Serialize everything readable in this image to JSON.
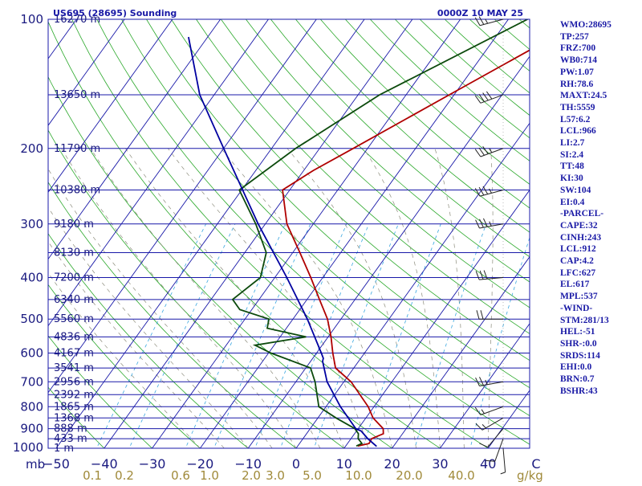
{
  "chart_data": {
    "type": "line",
    "title": "US695 (28695) Sounding",
    "datetime": "0000Z 10 MAY 25",
    "x_axis_unit": "mb",
    "temperature_ticks": [
      "−50",
      "−40",
      "−30",
      "−20",
      "−10",
      "0",
      "10",
      "20",
      "30",
      "40",
      "C"
    ],
    "mixing_ratio_label": "g/kg",
    "mixing_ratio_values": [
      "0.1",
      "0.2",
      "0.6",
      "1.0",
      "2.0",
      "3.0",
      "5.0",
      "10.0",
      "20.0",
      "40.0"
    ],
    "pressure_ticks": [
      {
        "p": 100,
        "label": "100"
      },
      {
        "p": 200,
        "label": "200"
      },
      {
        "p": 300,
        "label": "300"
      },
      {
        "p": 400,
        "label": "400"
      },
      {
        "p": 500,
        "label": "500"
      },
      {
        "p": 600,
        "label": "600"
      },
      {
        "p": 700,
        "label": "700"
      },
      {
        "p": 800,
        "label": "800"
      },
      {
        "p": 900,
        "label": "900"
      },
      {
        "p": 1000,
        "label": "1000"
      }
    ],
    "height_levels": [
      {
        "p": 100,
        "label": "16270 m"
      },
      {
        "p": 150,
        "label": "13650 m"
      },
      {
        "p": 200,
        "label": "11790 m"
      },
      {
        "p": 250,
        "label": "10380 m"
      },
      {
        "p": 300,
        "label": "9180 m"
      },
      {
        "p": 350,
        "label": "8130 m"
      },
      {
        "p": 400,
        "label": "7200 m"
      },
      {
        "p": 450,
        "label": "6340 m"
      },
      {
        "p": 500,
        "label": "5560 m"
      },
      {
        "p": 550,
        "label": "4836 m"
      },
      {
        "p": 600,
        "label": "4167 m"
      },
      {
        "p": 650,
        "label": "3541 m"
      },
      {
        "p": 700,
        "label": "2956 m"
      },
      {
        "p": 750,
        "label": "2392 m"
      },
      {
        "p": 800,
        "label": "1865 m"
      },
      {
        "p": 850,
        "label": "1368 m"
      },
      {
        "p": 900,
        "label": "888 m"
      },
      {
        "p": 950,
        "label": "433 m"
      },
      {
        "p": 1000,
        "label": "1 m"
      }
    ],
    "series": [
      {
        "kind": "temperature",
        "color": "#b00000",
        "points": [
          [
            988,
            12.5
          ],
          [
            975,
            14.5
          ],
          [
            950,
            14.3
          ],
          [
            925,
            16.0
          ],
          [
            900,
            15.2
          ],
          [
            850,
            11.5
          ],
          [
            800,
            8.8
          ],
          [
            700,
            1.5
          ],
          [
            650,
            -3.8
          ],
          [
            600,
            -6.6
          ],
          [
            550,
            -9.4
          ],
          [
            500,
            -12.8
          ],
          [
            450,
            -17.4
          ],
          [
            400,
            -22.5
          ],
          [
            350,
            -28.5
          ],
          [
            300,
            -35.5
          ],
          [
            250,
            -41.5
          ],
          [
            225,
            -38.0
          ],
          [
            200,
            -33.0
          ],
          [
            150,
            -21.0
          ],
          [
            100,
            -4.0
          ]
        ]
      },
      {
        "kind": "dewpoint",
        "color": "#0c4a0c",
        "points": [
          [
            988,
            12.2
          ],
          [
            975,
            13.0
          ],
          [
            950,
            11.5
          ],
          [
            925,
            10.8
          ],
          [
            900,
            9.3
          ],
          [
            850,
            3.8
          ],
          [
            800,
            -1.5
          ],
          [
            700,
            -6.0
          ],
          [
            650,
            -9.0
          ],
          [
            600,
            -19.5
          ],
          [
            575,
            -24.0
          ],
          [
            550,
            -14.6
          ],
          [
            525,
            -24.0
          ],
          [
            500,
            -25.0
          ],
          [
            475,
            -32.5
          ],
          [
            450,
            -35.5
          ],
          [
            400,
            -33.0
          ],
          [
            350,
            -35.5
          ],
          [
            300,
            -42.0
          ],
          [
            250,
            -50.5
          ],
          [
            200,
            -45.0
          ],
          [
            150,
            -35.5
          ],
          [
            100,
            -16.0
          ]
        ]
      },
      {
        "kind": "parcel",
        "color": "#0000a0",
        "points": [
          [
            990,
            16.5
          ],
          [
            950,
            13.5
          ],
          [
            912,
            11.0
          ],
          [
            900,
            9.5
          ],
          [
            800,
            3.0
          ],
          [
            700,
            -3.5
          ],
          [
            627,
            -7.5
          ],
          [
            617,
            -7.8
          ],
          [
            600,
            -9.0
          ],
          [
            500,
            -17.0
          ],
          [
            400,
            -27.5
          ],
          [
            300,
            -41.5
          ],
          [
            200,
            -60.0
          ],
          [
            150,
            -73.0
          ],
          [
            110,
            -84.0
          ]
        ]
      }
    ],
    "wind_barbs": [
      {
        "p": 1000,
        "dir": 175,
        "spd": 5
      },
      {
        "p": 950,
        "dir": 200,
        "spd": 10
      },
      {
        "p": 900,
        "dir": 220,
        "spd": 10
      },
      {
        "p": 850,
        "dir": 240,
        "spd": 15
      },
      {
        "p": 800,
        "dir": 250,
        "spd": 15
      },
      {
        "p": 700,
        "dir": 260,
        "spd": 25
      },
      {
        "p": 500,
        "dir": 270,
        "spd": 20
      },
      {
        "p": 400,
        "dir": 265,
        "spd": 30
      },
      {
        "p": 300,
        "dir": 260,
        "spd": 35
      },
      {
        "p": 250,
        "dir": 255,
        "spd": 35
      },
      {
        "p": 200,
        "dir": 250,
        "spd": 35
      },
      {
        "p": 150,
        "dir": 250,
        "spd": 40
      },
      {
        "p": 100,
        "dir": 255,
        "spd": 25
      }
    ]
  },
  "stats": [
    "WMO:28695",
    "TP:257",
    "FRZ:700",
    "WB0:714",
    "PW:1.07",
    "RH:78.6",
    "MAXT:24.5",
    "TH:5559",
    "L57:6.2",
    "LCL:966",
    "LI:2.7",
    "SI:2.4",
    "TT:48",
    "KI:30",
    "SW:104",
    "EI:0.4",
    "-PARCEL-",
    "CAPE:32",
    "CINH:243",
    "LCL:912",
    "CAP:4.2",
    "LFC:627",
    "EL:617",
    "MPL:537",
    "-WIND-",
    "STM:281/13",
    "HEL:-51",
    "SHR-:0.0",
    "SRDS:114",
    "EHI:0.0",
    "BRN:0.7",
    "BSHR:43"
  ]
}
